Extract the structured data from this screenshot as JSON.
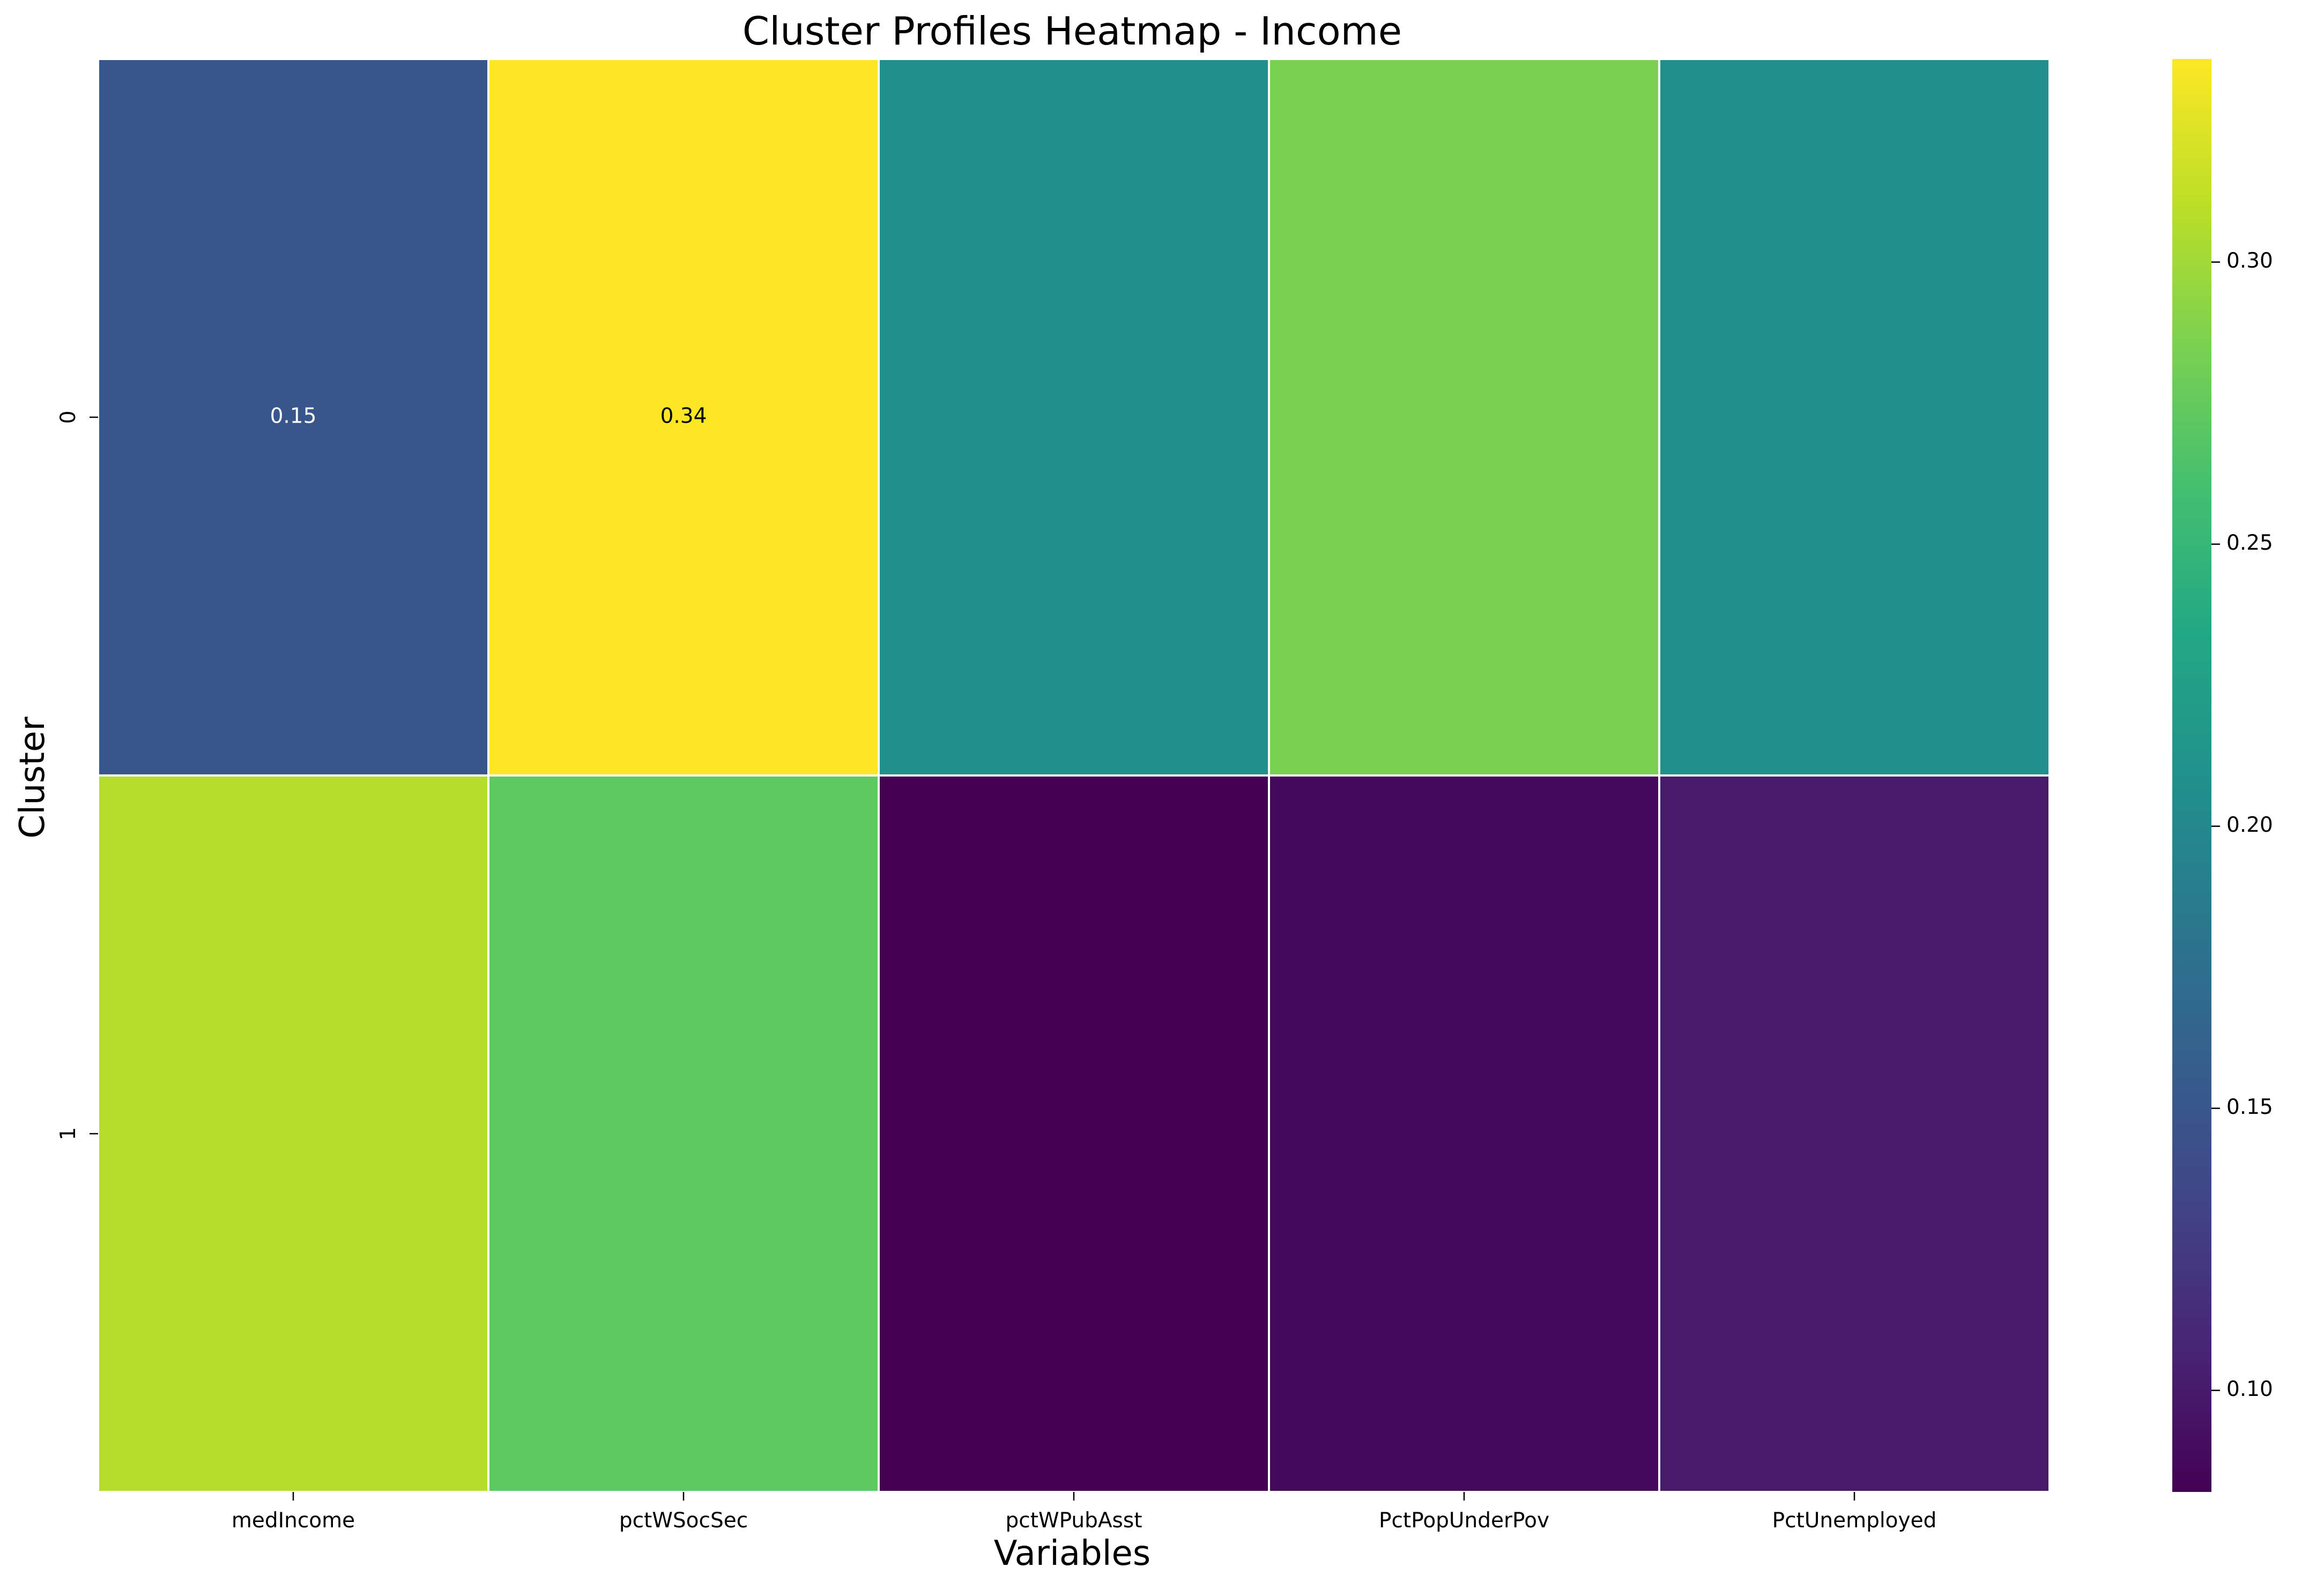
{
  "chart_data": {
    "type": "heatmap",
    "title": "Cluster Profiles Heatmap - Income",
    "xlabel": "Variables",
    "ylabel": "Cluster",
    "x_categories": [
      "medIncome",
      "pctWSocSec",
      "pctWPubAsst",
      "PctPopUnderPov",
      "PctUnemployed"
    ],
    "y_categories": [
      "0",
      "1"
    ],
    "values": [
      [
        0.15,
        0.34,
        0.208,
        0.285,
        0.208
      ],
      [
        0.307,
        0.272,
        0.082,
        0.087,
        0.1
      ]
    ],
    "annotations": [
      {
        "row": 0,
        "col": 0,
        "text": "0.15"
      },
      {
        "row": 0,
        "col": 1,
        "text": "0.34"
      }
    ],
    "colormap": "viridis",
    "color_range": [
      0.082,
      0.336
    ],
    "colorbar_ticks": [
      0.1,
      0.15,
      0.2,
      0.25,
      0.3
    ],
    "colorbar_tick_labels": [
      "0.10",
      "0.15",
      "0.20",
      "0.25",
      "0.30"
    ],
    "grid": false,
    "colors": {
      "cell_border": "#ffffff",
      "text_dark_bg": "#ffffff",
      "text_light_bg": "#000000"
    }
  }
}
